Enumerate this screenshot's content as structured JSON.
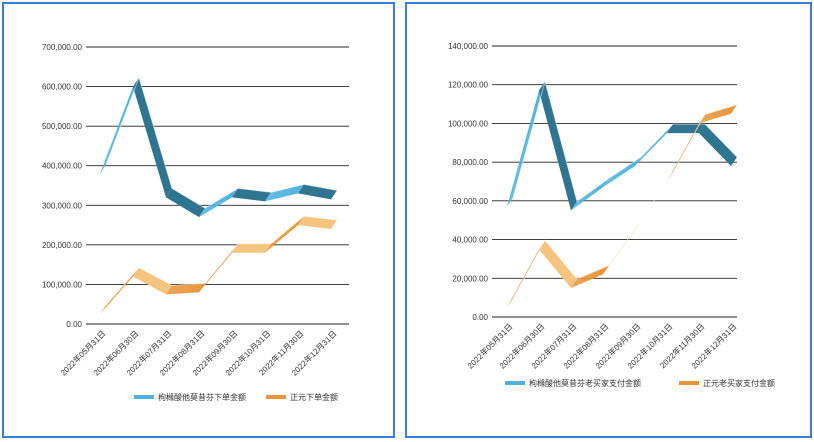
{
  "colors": {
    "series_blue": "#4fb2dd",
    "series_blue_dark": "#2f7590",
    "series_orange": "#e8953a",
    "series_orange_light": "#f5c47e",
    "grid": "#222222",
    "frame": "#3a7bd5"
  },
  "chart_data": [
    {
      "type": "line",
      "style": "3d-ribbon",
      "categories": [
        "2022年05月31日",
        "2022年06月30日",
        "2022年07月31日",
        "2022年08月31日",
        "2022年09月30日",
        "2022年10月31日",
        "2022年11月30日",
        "2022年12月31日"
      ],
      "series": [
        {
          "name": "枸橼酸他莫昔芬下单金额",
          "values": [
            380000,
            600000,
            320000,
            270000,
            320000,
            310000,
            330000,
            315000
          ]
        },
        {
          "name": "正元下单金额",
          "values": [
            25000,
            120000,
            75000,
            80000,
            180000,
            180000,
            250000,
            240000
          ]
        }
      ],
      "yticks": [
        "0.00",
        "100,000.00",
        "200,000.00",
        "300,000.00",
        "400,000.00",
        "500,000.00",
        "600,000.00",
        "700,000.00"
      ],
      "ylim": [
        0,
        700000
      ],
      "grid": true,
      "legend": "bottom",
      "title": "",
      "xlabel": "",
      "ylabel": ""
    },
    {
      "type": "line",
      "style": "3d-ribbon",
      "categories": [
        "2022年05月31日",
        "2022年06月30日",
        "2022年07月31日",
        "2022年08月31日",
        "2022年09月30日",
        "2022年10月31日",
        "2022年11月30日",
        "2022年12月31日"
      ],
      "series": [
        {
          "name": "枸橼酸他莫昔芬老买家支付金额",
          "values": [
            57000,
            117000,
            55000,
            67000,
            78000,
            95000,
            95000,
            78000
          ]
        },
        {
          "name": "正元老买家支付金额",
          "values": [
            5000,
            35000,
            15000,
            22000,
            45000,
            70000,
            100000,
            105000
          ]
        }
      ],
      "yticks": [
        "0.00",
        "20,000.00",
        "40,000.00",
        "60,000.00",
        "80,000.00",
        "100,000.00",
        "120,000.00",
        "140,000.00"
      ],
      "ylim": [
        0,
        140000
      ],
      "grid": true,
      "legend": "bottom",
      "title": "",
      "xlabel": "",
      "ylabel": ""
    }
  ]
}
